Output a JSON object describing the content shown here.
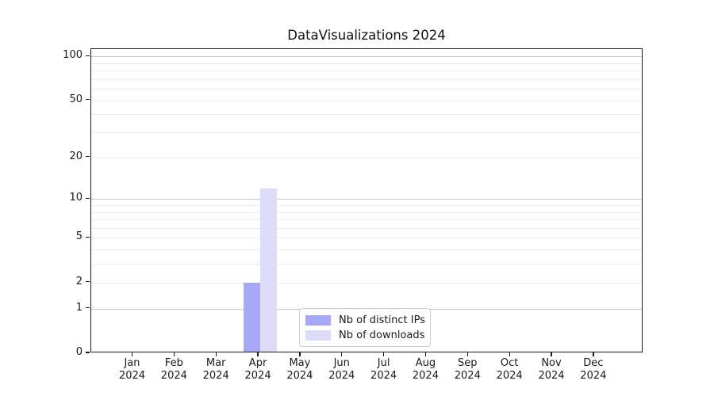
{
  "title": "DataVisualizations 2024",
  "chart_data": {
    "type": "bar",
    "title": "DataVisualizations 2024",
    "y_scale": "log1p",
    "categories": [
      "Jan 2024",
      "Feb 2024",
      "Mar 2024",
      "Apr 2024",
      "May 2024",
      "Jun 2024",
      "Jul 2024",
      "Aug 2024",
      "Sep 2024",
      "Oct 2024",
      "Nov 2024",
      "Dec 2024"
    ],
    "series": [
      {
        "name": "Nb of distinct IPs",
        "color": "#a8a8f8",
        "values": [
          0,
          0,
          0,
          2,
          0,
          0,
          0,
          0,
          0,
          0,
          0,
          0
        ]
      },
      {
        "name": "Nb of downloads",
        "color": "#dcdcf8",
        "values": [
          0,
          0,
          0,
          12,
          0,
          0,
          0,
          0,
          0,
          0,
          0,
          0
        ]
      }
    ],
    "ylim": [
      0,
      112
    ],
    "yticks": [
      0,
      1,
      2,
      5,
      10,
      20,
      50,
      100
    ],
    "minor_yticks": [
      3,
      4,
      6,
      7,
      8,
      9,
      30,
      40,
      60,
      70,
      80,
      90
    ],
    "emphasized_gridlines": [
      1,
      10,
      100
    ],
    "grid": true,
    "legend": {
      "position": "lower center"
    }
  },
  "colors": {
    "axis": "#1a1a1a",
    "grid_minor": "#ececec",
    "grid_major": "#c6c6c6",
    "legend_border": "#cccccc"
  }
}
